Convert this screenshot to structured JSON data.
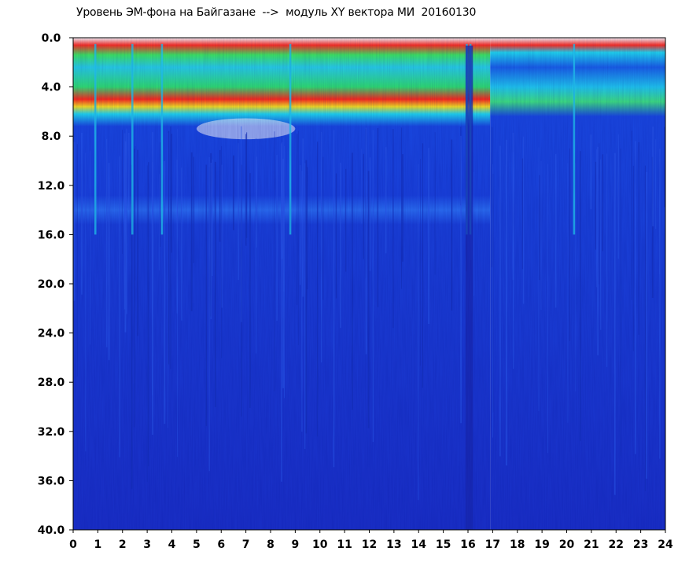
{
  "chart_data": {
    "type": "heatmap",
    "title": "Уровень ЭМ-фона на Байгазане  -->  модуль XY вектора МИ  20160130",
    "xlabel": "",
    "ylabel": "",
    "xlim": [
      0,
      24
    ],
    "ylim": [
      0,
      40
    ],
    "y_inverted": true,
    "x_ticks": [
      "0",
      "1",
      "2",
      "3",
      "4",
      "5",
      "6",
      "7",
      "8",
      "9",
      "10",
      "11",
      "12",
      "13",
      "14",
      "15",
      "16",
      "17",
      "18",
      "19",
      "20",
      "21",
      "22",
      "23",
      "24"
    ],
    "y_ticks": [
      "0.0",
      "4.0",
      "8.0",
      "12.0",
      "16.0",
      "20.0",
      "24.0",
      "28.0",
      "32.0",
      "36.0",
      "40.0"
    ],
    "colors": {
      "background_low": "#1a3ad6",
      "mid": "#18c8f0",
      "elevated": "#28e070",
      "high": "#ff2a1a",
      "peak": "#ffffff"
    },
    "bands": [
      {
        "y_from": 0.5,
        "y_to": 7,
        "level": "elevated"
      },
      {
        "y_from": 6.5,
        "y_to": 8.5,
        "level": "high"
      },
      {
        "y_from": 13,
        "y_to": 14.5,
        "level": "mid"
      }
    ],
    "dropouts_x": [
      0.9,
      2.4,
      3.6,
      8.8,
      15.95,
      16.1,
      20.3
    ]
  }
}
